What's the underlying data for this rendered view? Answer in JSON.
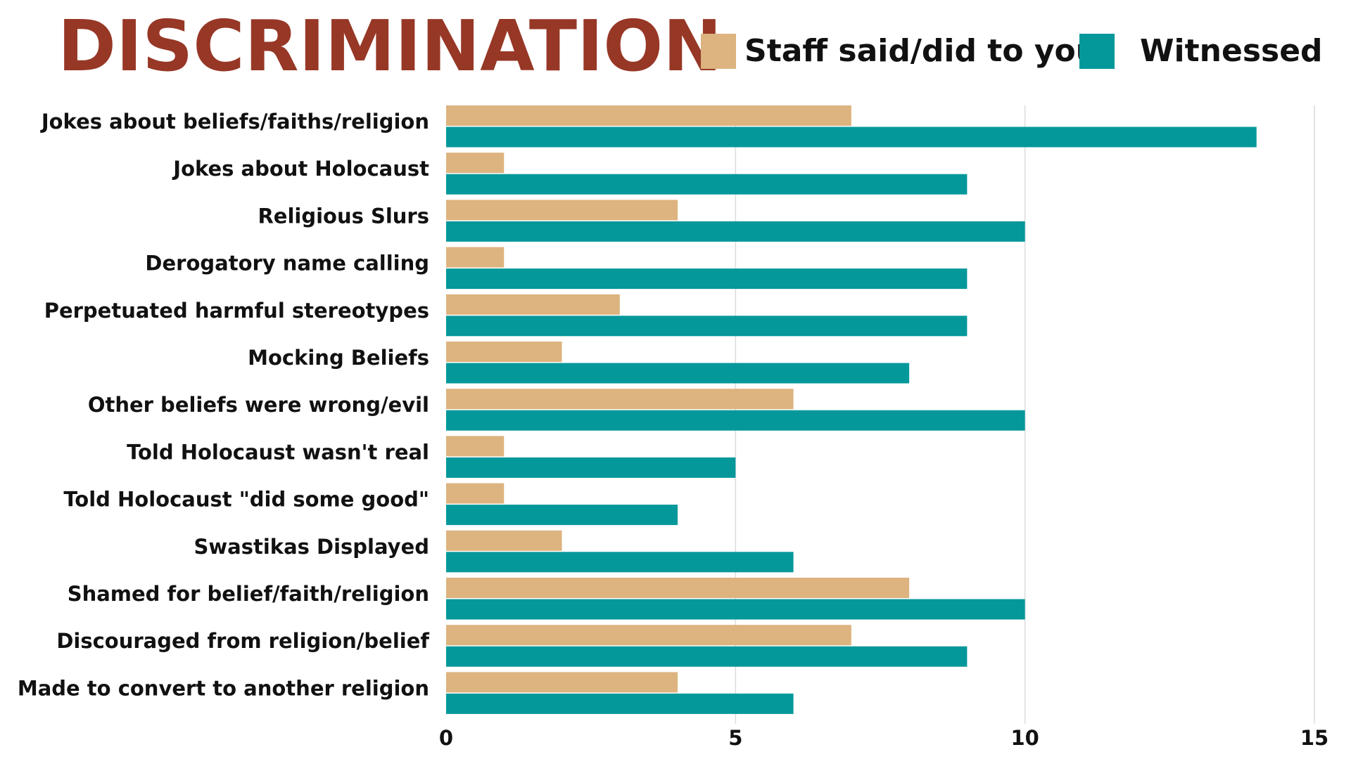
{
  "chart_data": {
    "type": "bar",
    "orientation": "horizontal",
    "title": "DISCRIMINATION",
    "categories": [
      "Jokes about beliefs/faiths/religion",
      "Jokes about Holocaust",
      "Religious Slurs",
      "Derogatory name calling",
      "Perpetuated harmful stereotypes",
      "Mocking Beliefs",
      "Other beliefs were wrong/evil",
      "Told Holocaust wasn't real",
      "Told Holocaust \"did some good\"",
      "Swastikas Displayed",
      "Shamed for belief/faith/religion",
      "Discouraged from religion/belief",
      "Made to convert to another religion"
    ],
    "series": [
      {
        "name": "Staff said/did to you",
        "color": "#DDB37F",
        "values": [
          7,
          1,
          4,
          1,
          3,
          2,
          6,
          1,
          1,
          2,
          8,
          7,
          4
        ]
      },
      {
        "name": "Witnessed",
        "color": "#05989B",
        "values": [
          14,
          9,
          10,
          9,
          9,
          8,
          10,
          5,
          4,
          6,
          10,
          9,
          6
        ]
      }
    ],
    "xlim": [
      0,
      15
    ],
    "xticks": [
      "0",
      "5",
      "10",
      "15"
    ],
    "xlabel": "",
    "ylabel": "",
    "grid": true,
    "legend_position": "top-right",
    "title_color": "#973726"
  }
}
